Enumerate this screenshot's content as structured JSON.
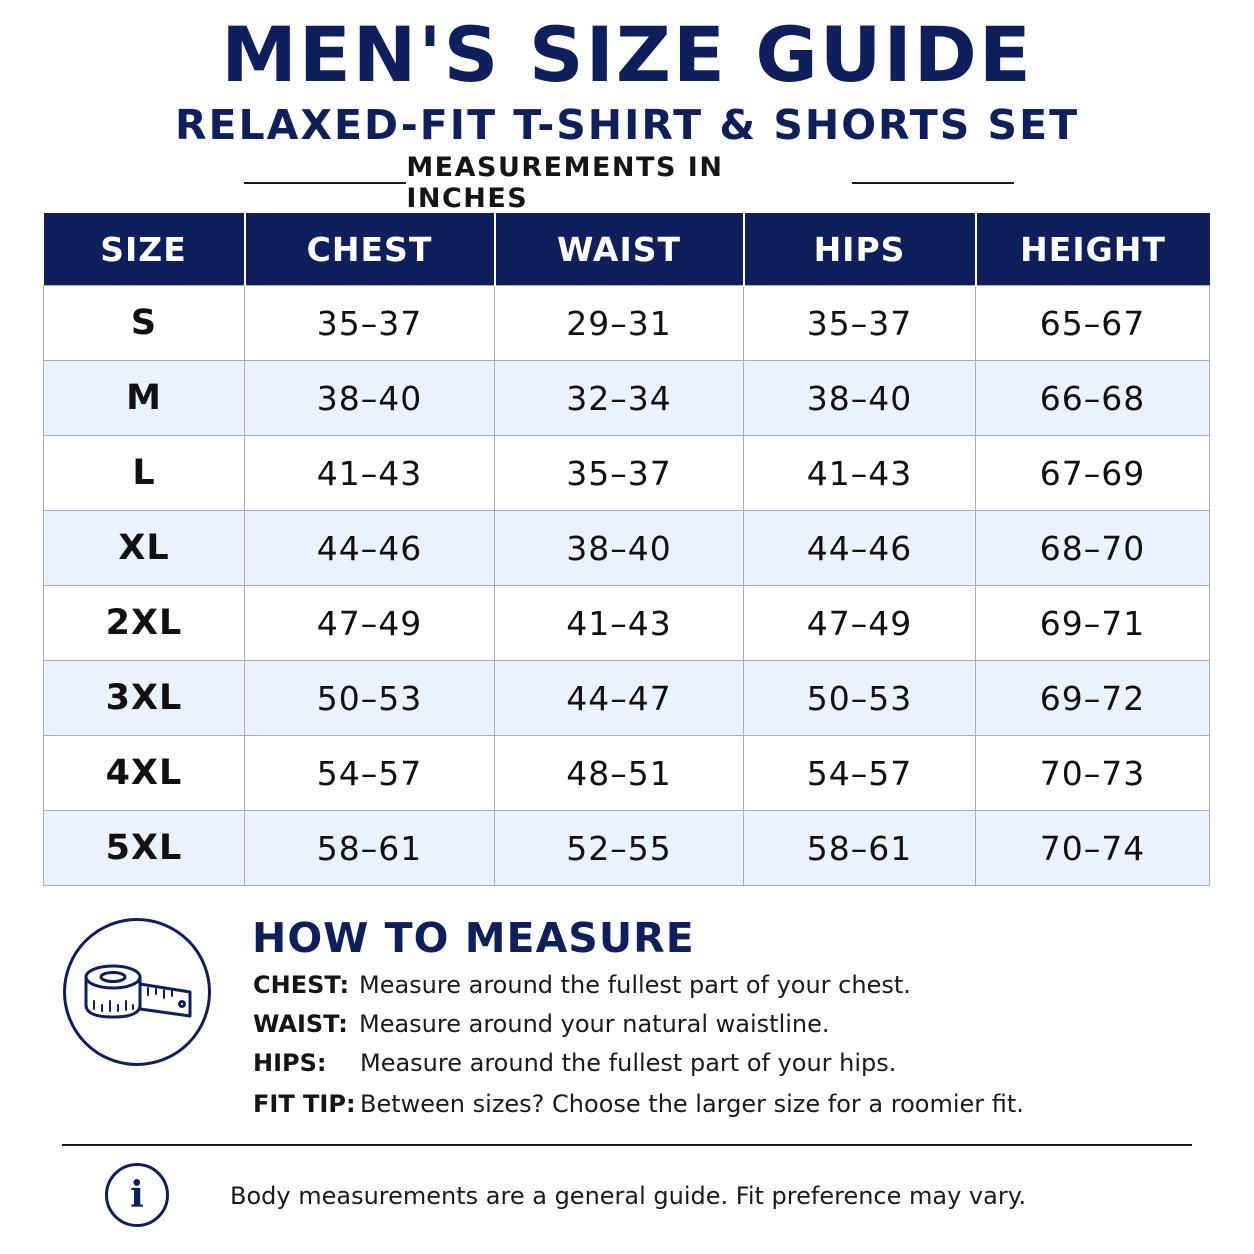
{
  "header": {
    "title": "MEN'S SIZE GUIDE",
    "subtitle": "RELAXED-FIT T-SHIRT & SHORTS SET",
    "units": "MEASUREMENTS IN INCHES"
  },
  "table": {
    "columns": [
      "SIZE",
      "CHEST",
      "WAIST",
      "HIPS",
      "HEIGHT"
    ],
    "rows": [
      [
        "S",
        "35–37",
        "29–31",
        "35–37",
        "65–67"
      ],
      [
        "M",
        "38–40",
        "32–34",
        "38–40",
        "66–68"
      ],
      [
        "L",
        "41–43",
        "35–37",
        "41–43",
        "67–69"
      ],
      [
        "XL",
        "44–46",
        "38–40",
        "44–46",
        "68–70"
      ],
      [
        "2XL",
        "47–49",
        "41–43",
        "47–49",
        "69–71"
      ],
      [
        "3XL",
        "50–53",
        "44–47",
        "50–53",
        "69–72"
      ],
      [
        "4XL",
        "54–57",
        "48–51",
        "54–57",
        "70–73"
      ],
      [
        "5XL",
        "58–61",
        "52–55",
        "58–61",
        "70–74"
      ]
    ]
  },
  "how_to_measure": {
    "icon": "measuring-tape-icon",
    "title": "HOW TO MEASURE",
    "items": [
      {
        "label": "CHEST:",
        "text": "Measure around the fullest part of your chest."
      },
      {
        "label": "WAIST:",
        "text": "Measure around your natural waistline."
      },
      {
        "label": "HIPS:",
        "text": "Measure around the fullest part of your hips."
      },
      {
        "label": "FIT TIP:",
        "text": "Between sizes? Choose the larger size for a roomier fit."
      }
    ]
  },
  "footer": {
    "icon": "info-icon",
    "icon_glyph": "i",
    "note": "Body measurements are a general guide. Fit preference may vary."
  },
  "colors": {
    "navy": "#0f1f5c",
    "row_alt": "#eaf2fc",
    "grid": "#a6afc2"
  }
}
